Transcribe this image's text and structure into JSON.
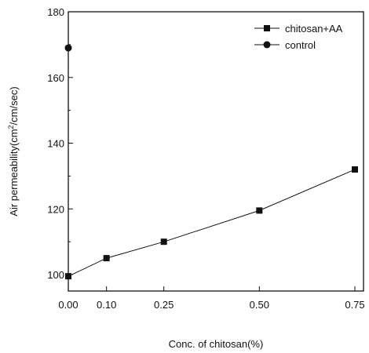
{
  "chart_data": {
    "type": "line",
    "xlabel": "Conc. of chitosan(%)",
    "ylabel_main": "Air permeability(cm",
    "ylabel_sup": "2",
    "ylabel_tail": "/cm/sec)",
    "xlim": [
      0,
      0.78
    ],
    "ylim": [
      95,
      180
    ],
    "x_ticks": [
      0.0,
      0.1,
      0.25,
      0.5,
      0.75
    ],
    "x_tick_labels": [
      "0.00",
      "0.10",
      "0.25",
      "0.50",
      "0.75"
    ],
    "y_ticks": [
      100,
      120,
      140,
      160,
      180
    ],
    "y_tick_labels": [
      "100",
      "120",
      "140",
      "160",
      "180"
    ],
    "legend_position": "top-right",
    "series": [
      {
        "name": "chitosan+AA",
        "marker": "square",
        "connected": true,
        "color": "#111111",
        "x": [
          0.0,
          0.1,
          0.25,
          0.5,
          0.75
        ],
        "y": [
          99.5,
          105,
          110,
          119.5,
          132
        ]
      },
      {
        "name": "control",
        "marker": "circle",
        "connected": false,
        "color": "#111111",
        "x": [
          0.0
        ],
        "y": [
          169
        ]
      }
    ]
  }
}
